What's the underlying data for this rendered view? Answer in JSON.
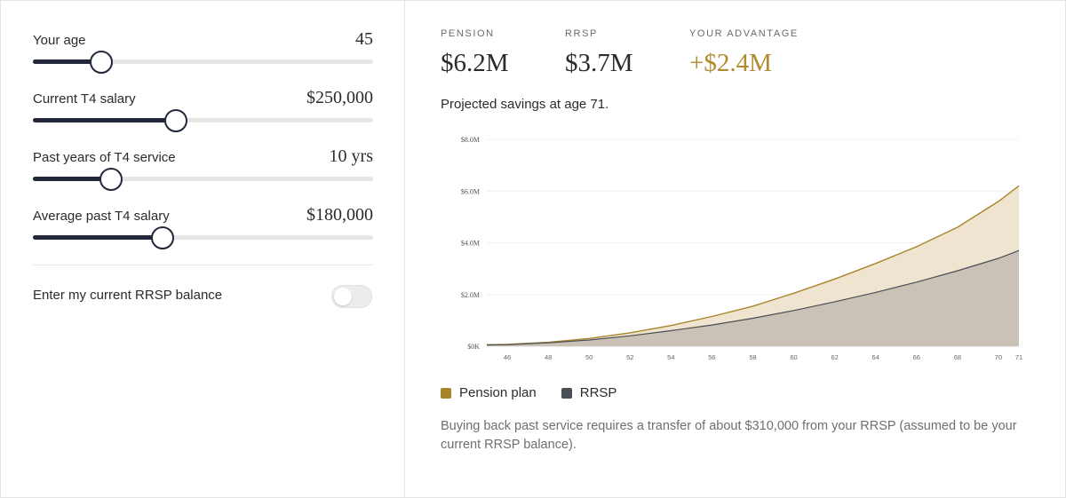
{
  "sliders": [
    {
      "label": "Your age",
      "value": "45",
      "fraction": 0.2
    },
    {
      "label": "Current T4 salary",
      "value": "$250,000",
      "fraction": 0.42
    },
    {
      "label": "Past years of T4 service",
      "value": "10 yrs",
      "fraction": 0.23
    },
    {
      "label": "Average past T4 salary",
      "value": "$180,000",
      "fraction": 0.38
    }
  ],
  "toggle": {
    "label": "Enter my current RRSP balance",
    "on": false
  },
  "stats": [
    {
      "label": "PENSION",
      "value": "$6.2M"
    },
    {
      "label": "RRSP",
      "value": "$3.7M"
    },
    {
      "label": "YOUR ADVANTAGE",
      "value": "+$2.4M"
    }
  ],
  "projection_text": "Projected savings at age 71.",
  "legend": [
    {
      "label": "Pension plan",
      "color": "#a8842b"
    },
    {
      "label": "RRSP",
      "color": "#4a4e57"
    }
  ],
  "note": "Buying back past service requires a transfer of about $310,000 from your RRSP (assumed to be your current RRSP balance).",
  "colors": {
    "accent": "#b08a2e",
    "slider_dark": "#22283a",
    "pension_fill": "#efe4cf",
    "rrsp_fill": "#cbc2b7"
  },
  "chart_data": {
    "type": "area",
    "x": [
      45,
      46,
      48,
      50,
      52,
      54,
      56,
      58,
      60,
      62,
      64,
      66,
      68,
      70,
      71
    ],
    "x_tick_labels": [
      "46",
      "48",
      "50",
      "52",
      "54",
      "56",
      "58",
      "60",
      "62",
      "64",
      "66",
      "68",
      "70",
      "71"
    ],
    "y_tick_labels": [
      "$0K",
      "$2.0M",
      "$4.0M",
      "$6.0M",
      "$8.0M"
    ],
    "ylim": [
      0,
      8
    ],
    "xlim": [
      45,
      71
    ],
    "grid": true,
    "series": [
      {
        "name": "Pension plan",
        "values": [
          0.05,
          0.07,
          0.15,
          0.3,
          0.52,
          0.8,
          1.15,
          1.55,
          2.05,
          2.6,
          3.2,
          3.85,
          4.6,
          5.6,
          6.2
        ]
      },
      {
        "name": "RRSP",
        "values": [
          0.05,
          0.06,
          0.13,
          0.24,
          0.4,
          0.6,
          0.82,
          1.08,
          1.38,
          1.72,
          2.08,
          2.48,
          2.92,
          3.4,
          3.7
        ]
      }
    ]
  }
}
